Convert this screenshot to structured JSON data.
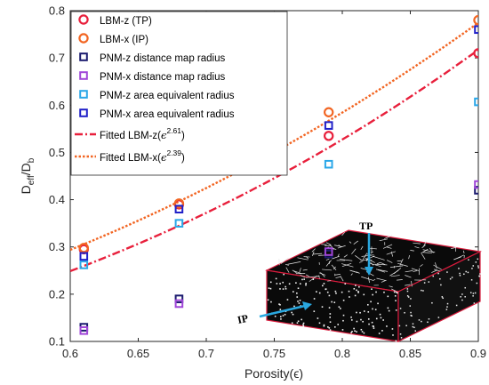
{
  "chart_data": {
    "type": "scatter",
    "xlabel": "Porosity",
    "xlabel_symbol": "(ϵ)",
    "ylabel_main": "D",
    "ylabel_sub1": "eff",
    "ylabel_slash": "/D",
    "ylabel_sub2": "b",
    "xlim": [
      0.6,
      0.9
    ],
    "ylim": [
      0.1,
      0.8
    ],
    "xticks": [
      0.6,
      0.65,
      0.7,
      0.75,
      0.8,
      0.85,
      0.9
    ],
    "yticks": [
      0.1,
      0.2,
      0.3,
      0.4,
      0.5,
      0.6,
      0.7,
      0.8
    ],
    "grid": false,
    "legend_position": "top-left",
    "series": [
      {
        "name": "LBM-z (TP)",
        "marker": "circle",
        "color": "#e8203c",
        "x": [
          0.61,
          0.68,
          0.79,
          0.9
        ],
        "y": [
          0.295,
          0.39,
          0.535,
          0.71
        ]
      },
      {
        "name": "LBM-x (IP)",
        "marker": "circle",
        "color": "#f26522",
        "x": [
          0.61,
          0.68,
          0.79,
          0.9
        ],
        "y": [
          0.298,
          0.392,
          0.585,
          0.78
        ]
      },
      {
        "name": "PNM-z distance map radius",
        "marker": "square",
        "color": "#1a1a6e",
        "x": [
          0.61,
          0.68,
          0.79,
          0.9
        ],
        "y": [
          0.13,
          0.19,
          0.285,
          0.42
        ]
      },
      {
        "name": "PNM-x distance map radius",
        "marker": "square",
        "color": "#a046d8",
        "x": [
          0.61,
          0.68,
          0.79,
          0.9
        ],
        "y": [
          0.123,
          0.18,
          0.29,
          0.432
        ]
      },
      {
        "name": "PNM-z area equivalent radius",
        "marker": "square",
        "color": "#2aa7e8",
        "x": [
          0.61,
          0.68,
          0.79,
          0.9
        ],
        "y": [
          0.262,
          0.35,
          0.475,
          0.607
        ]
      },
      {
        "name": "PNM-x area equivalent radius",
        "marker": "square",
        "color": "#2020c8",
        "x": [
          0.61,
          0.68,
          0.79,
          0.9
        ],
        "y": [
          0.28,
          0.38,
          0.557,
          0.76
        ]
      }
    ],
    "fits": [
      {
        "name_prefix": "Fitted LBM-z(",
        "symbol": "ϵ",
        "exponent": "2.61",
        "name_suffix": ")",
        "style": "dash-dot",
        "color": "#e8203c",
        "coefficient": 0.944,
        "power": 2.61
      },
      {
        "name_prefix": "Fitted LBM-x(",
        "symbol": "ϵ",
        "exponent": "2.39",
        "name_suffix": ")",
        "style": "dotted",
        "color": "#f26522",
        "coefficient": 0.996,
        "power": 2.39
      }
    ],
    "inset": {
      "label_top": "TP",
      "label_side": "IP"
    }
  }
}
